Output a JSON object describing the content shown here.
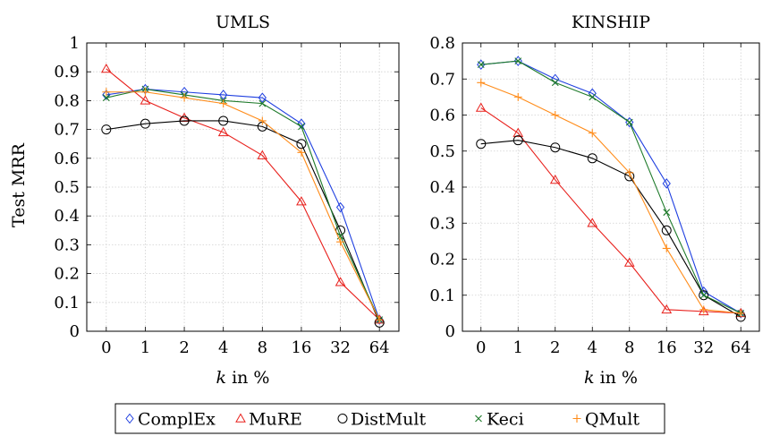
{
  "ylabel_shared": "Test MRR",
  "legend": [
    {
      "name": "ComplEx",
      "color": "#1f3fe0",
      "marker": "diamond"
    },
    {
      "name": "MuRE",
      "color": "#e8201c",
      "marker": "triangle"
    },
    {
      "name": "DistMult",
      "color": "#000000",
      "marker": "circle"
    },
    {
      "name": "Keci",
      "color": "#1e7a2a",
      "marker": "cross"
    },
    {
      "name": "QMult",
      "color": "#ff8c1a",
      "marker": "plus"
    }
  ],
  "chart_data": [
    {
      "type": "line",
      "title": "UMLS",
      "xlabel": "k in %",
      "ylabel": "Test MRR",
      "categories": [
        "0",
        "1",
        "2",
        "4",
        "8",
        "16",
        "32",
        "64"
      ],
      "ylim": [
        0,
        1
      ],
      "yticks": [
        "0",
        "0.1",
        "0.2",
        "0.3",
        "0.4",
        "0.5",
        "0.6",
        "0.7",
        "0.8",
        "0.9",
        "1"
      ],
      "grid": true,
      "series": [
        {
          "name": "ComplEx",
          "values": [
            0.82,
            0.84,
            0.83,
            0.82,
            0.81,
            0.72,
            0.43,
            0.04
          ]
        },
        {
          "name": "MuRE",
          "values": [
            0.91,
            0.8,
            0.74,
            0.69,
            0.61,
            0.45,
            0.17,
            0.04
          ]
        },
        {
          "name": "DistMult",
          "values": [
            0.7,
            0.72,
            0.73,
            0.73,
            0.71,
            0.65,
            0.35,
            0.03
          ]
        },
        {
          "name": "Keci",
          "values": [
            0.81,
            0.84,
            0.82,
            0.8,
            0.79,
            0.71,
            0.33,
            0.04
          ]
        },
        {
          "name": "QMult",
          "values": [
            0.83,
            0.83,
            0.81,
            0.79,
            0.73,
            0.62,
            0.31,
            0.04
          ]
        }
      ]
    },
    {
      "type": "line",
      "title": "KINSHIP",
      "xlabel": "k in %",
      "ylabel": "",
      "categories": [
        "0",
        "1",
        "2",
        "4",
        "8",
        "16",
        "32",
        "64"
      ],
      "ylim": [
        0,
        0.8
      ],
      "yticks": [
        "0",
        "0.1",
        "0.2",
        "0.3",
        "0.4",
        "0.5",
        "0.6",
        "0.7",
        "0.8"
      ],
      "grid": true,
      "series": [
        {
          "name": "ComplEx",
          "values": [
            0.74,
            0.75,
            0.7,
            0.66,
            0.58,
            0.41,
            0.11,
            0.05
          ]
        },
        {
          "name": "MuRE",
          "values": [
            0.62,
            0.55,
            0.42,
            0.3,
            0.19,
            0.06,
            0.055,
            0.05
          ]
        },
        {
          "name": "DistMult",
          "values": [
            0.52,
            0.53,
            0.51,
            0.48,
            0.43,
            0.28,
            0.1,
            0.04
          ]
        },
        {
          "name": "Keci",
          "values": [
            0.74,
            0.75,
            0.69,
            0.65,
            0.58,
            0.33,
            0.1,
            0.05
          ]
        },
        {
          "name": "QMult",
          "values": [
            0.69,
            0.65,
            0.6,
            0.55,
            0.44,
            0.23,
            0.06,
            0.05
          ]
        }
      ]
    }
  ]
}
